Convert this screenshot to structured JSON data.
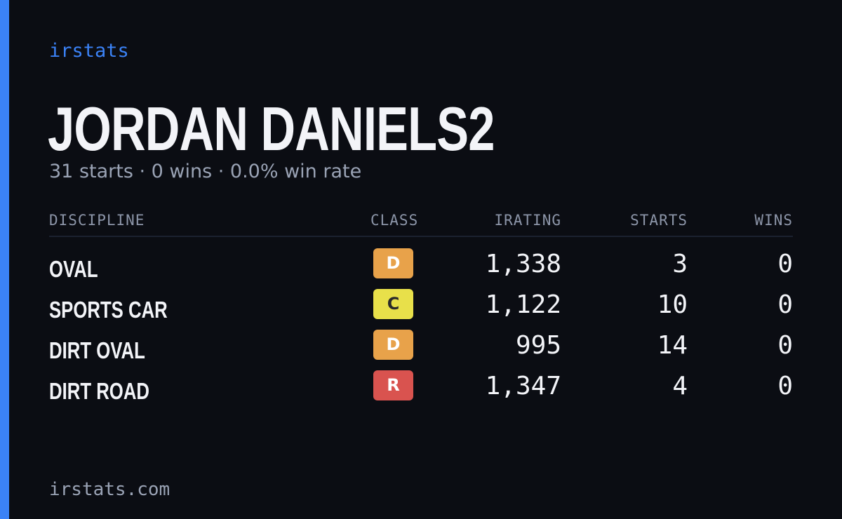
{
  "brand": "irstats",
  "player": {
    "name": "JORDAN DANIELS2",
    "summary": "31 starts · 0 wins · 0.0% win rate"
  },
  "table": {
    "headers": {
      "discipline": "DISCIPLINE",
      "class": "CLASS",
      "irating": "IRATING",
      "starts": "STARTS",
      "wins": "WINS"
    },
    "rows": [
      {
        "discipline": "OVAL",
        "class": "D",
        "class_color": "#e8a24a",
        "class_text_color": "#ffffff",
        "irating": "1,338",
        "starts": "3",
        "wins": "0"
      },
      {
        "discipline": "SPORTS CAR",
        "class": "C",
        "class_color": "#e8e04a",
        "class_text_color": "#2a2a2a",
        "irating": "1,122",
        "starts": "10",
        "wins": "0"
      },
      {
        "discipline": "DIRT OVAL",
        "class": "D",
        "class_color": "#e8a24a",
        "class_text_color": "#ffffff",
        "irating": "995",
        "starts": "14",
        "wins": "0"
      },
      {
        "discipline": "DIRT ROAD",
        "class": "R",
        "class_color": "#d9534f",
        "class_text_color": "#ffffff",
        "irating": "1,347",
        "starts": "4",
        "wins": "0"
      }
    ]
  },
  "footer": {
    "domain": "irstats.com"
  },
  "colors": {
    "accent": "#3b82f6",
    "background": "#0b0d13"
  }
}
